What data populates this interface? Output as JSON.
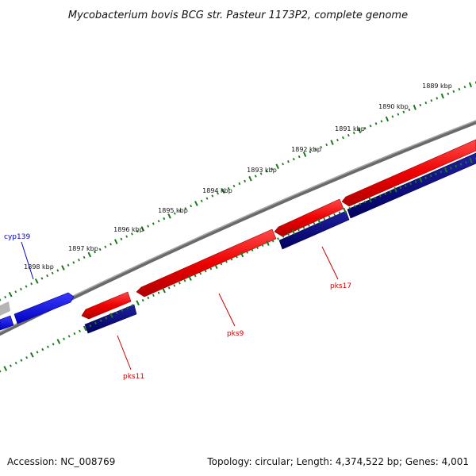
{
  "title": "Mycobacterium bovis BCG str. Pasteur 1173P2, complete genome",
  "accession": "Accession: NC_008769",
  "summary": "Topology: circular; Length: 4,374,522 bp; Genes: 4,001",
  "colors": {
    "backbone": "#7a7a7a",
    "forward_orf": "#ff0000",
    "reverse_orf": "#000080",
    "other_feature": "#0000ff",
    "tick": "#1a7a1a",
    "gene_label_red": "#cc0000",
    "gene_label_blue": "#0000cc"
  },
  "ticks": [
    {
      "kbp": 1889,
      "label": "1889 kbp"
    },
    {
      "kbp": 1890,
      "label": "1890 kbp"
    },
    {
      "kbp": 1891,
      "label": "1891 kbp"
    },
    {
      "kbp": 1892,
      "label": "1892 kbp"
    },
    {
      "kbp": 1893,
      "label": "1893 kbp"
    },
    {
      "kbp": 1894,
      "label": "1894 kbp"
    },
    {
      "kbp": 1895,
      "label": "1895 kbp"
    },
    {
      "kbp": 1896,
      "label": "1896 kbp"
    },
    {
      "kbp": 1897,
      "label": "1897 kbp"
    },
    {
      "kbp": 1898,
      "label": "1898 kbp"
    }
  ],
  "genes": [
    {
      "name": "cyp139",
      "strand": "forward",
      "type": "other_feature"
    },
    {
      "name": "pks11",
      "strand": "reverse",
      "type": "reverse_orf"
    },
    {
      "name": "pks9",
      "strand": "forward",
      "type": "forward_orf"
    },
    {
      "name": "pks17",
      "strand": "reverse",
      "type": "reverse_orf"
    }
  ]
}
